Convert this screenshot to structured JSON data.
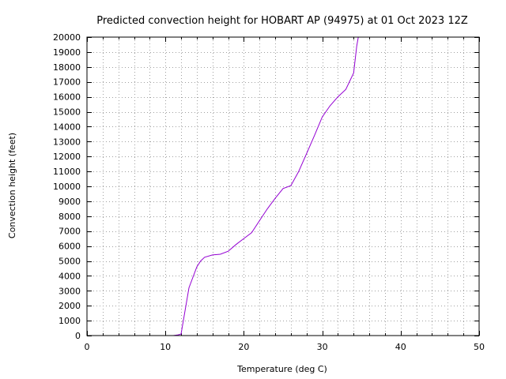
{
  "chart_data": {
    "type": "line",
    "title": "Predicted convection height for HOBART AP (94975) at 01 Oct 2023 12Z",
    "xlabel": "Temperature (deg C)",
    "ylabel": "Convection height (feet)",
    "xlim": [
      0,
      50
    ],
    "ylim": [
      0,
      20000
    ],
    "x_ticks": [
      0,
      10,
      20,
      30,
      40,
      50
    ],
    "x_minor_step": 2,
    "y_ticks": [
      0,
      1000,
      2000,
      3000,
      4000,
      5000,
      6000,
      7000,
      8000,
      9000,
      10000,
      11000,
      12000,
      13000,
      14000,
      15000,
      16000,
      17000,
      18000,
      19000,
      20000
    ],
    "grid": true,
    "series_color": "#9400d3",
    "series": [
      {
        "x": [
          11.0,
          11.6,
          12.0,
          13.0,
          14.0,
          14.5,
          15.0,
          16.0,
          17.0,
          18.0,
          19.0,
          20.0,
          21.0,
          22.0,
          23.0,
          24.0,
          25.0,
          26.0,
          27.0,
          28.0,
          29.0,
          30.0,
          31.0,
          32.0,
          33.0,
          34.0,
          34.4,
          34.6
        ],
        "y": [
          0,
          50,
          100,
          3200,
          4600,
          5000,
          5250,
          5400,
          5450,
          5650,
          6100,
          6500,
          6900,
          7700,
          8500,
          9200,
          9850,
          10050,
          11000,
          12200,
          13400,
          14650,
          15400,
          16000,
          16500,
          17600,
          19400,
          20000
        ]
      }
    ]
  }
}
